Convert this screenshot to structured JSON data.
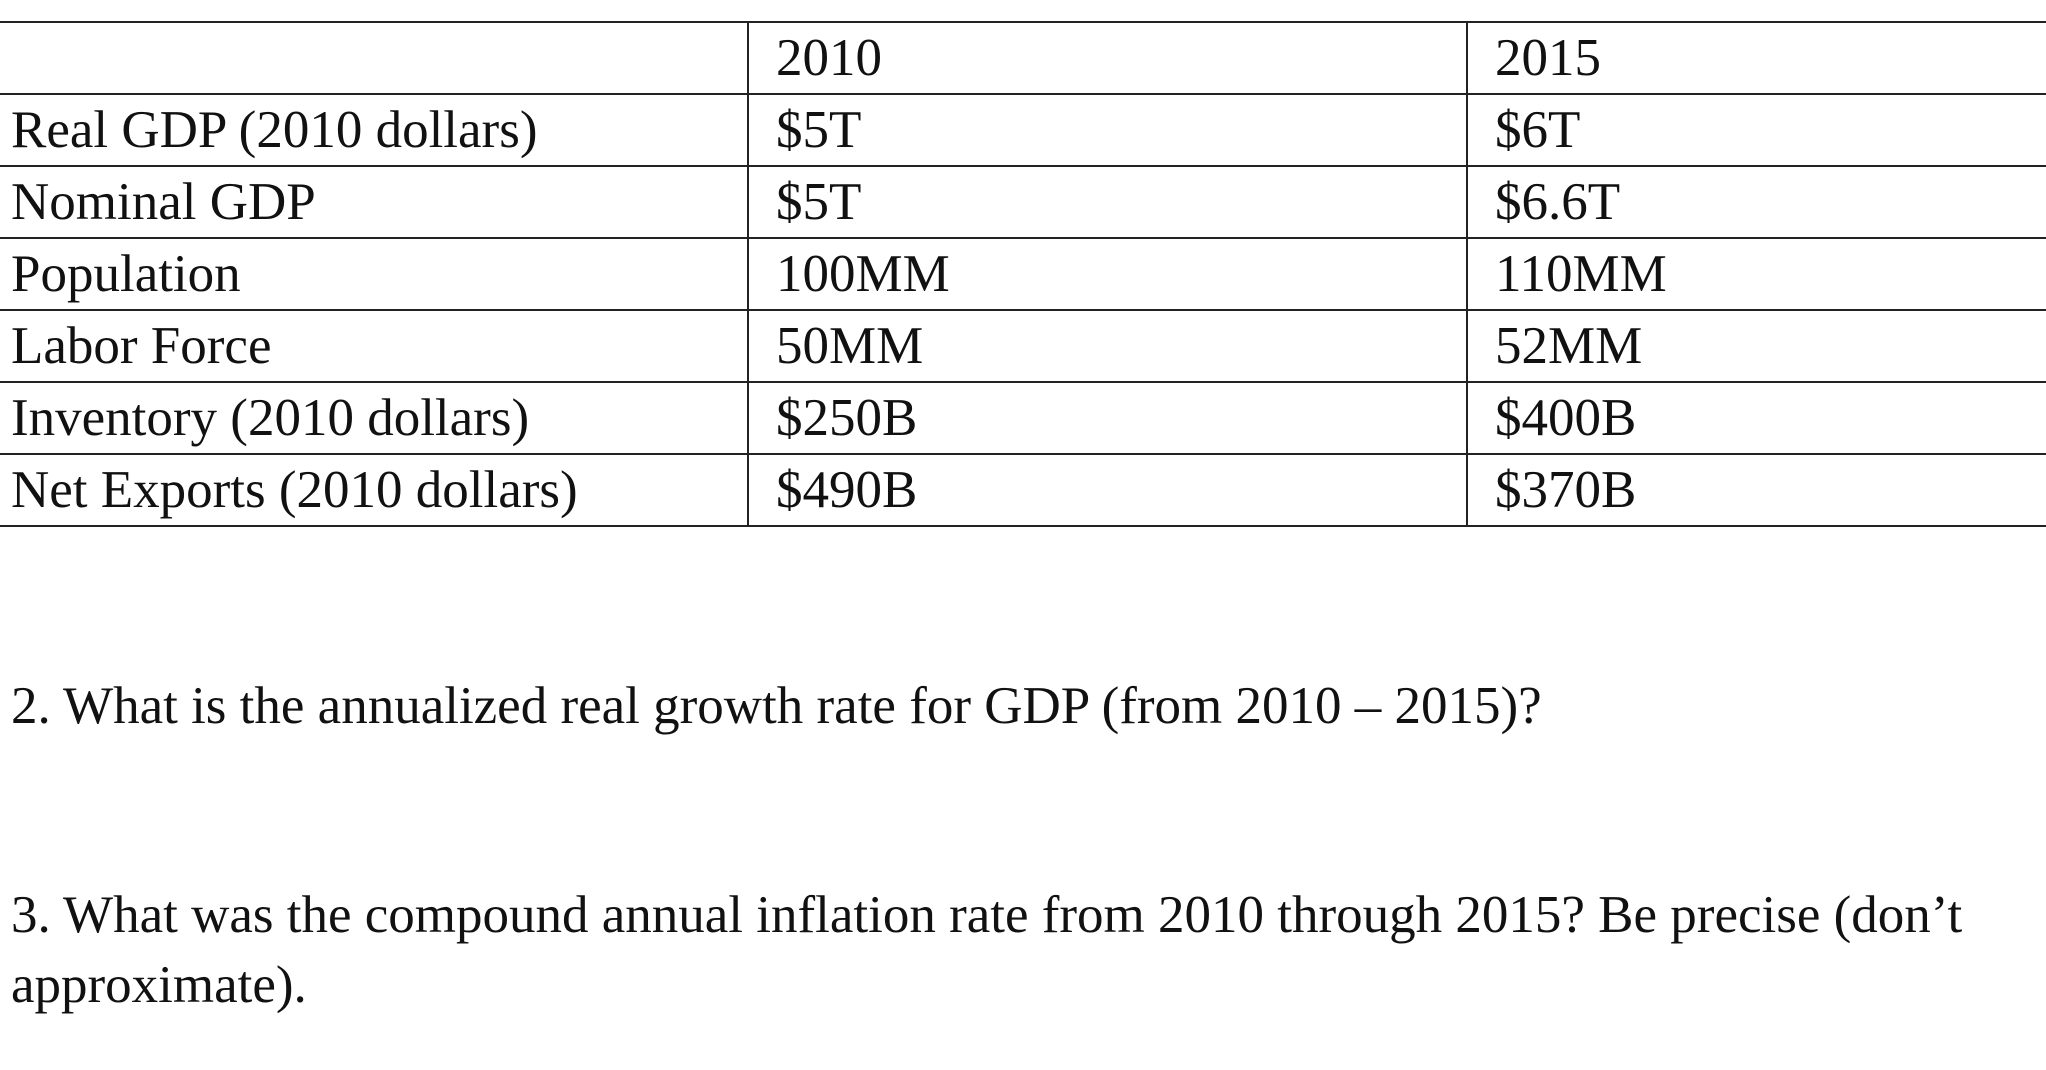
{
  "table": {
    "headers": [
      "",
      "2010",
      "2015"
    ],
    "rows": [
      [
        "Real GDP (2010 dollars)",
        "$5T",
        "$6T"
      ],
      [
        "Nominal GDP",
        "$5T",
        "$6.6T"
      ],
      [
        "Population",
        "100MM",
        "110MM"
      ],
      [
        "Labor Force",
        "50MM",
        "52MM"
      ],
      [
        "Inventory (2010 dollars)",
        "$250B",
        "$400B"
      ],
      [
        "Net Exports (2010 dollars)",
        "$490B",
        "$370B"
      ]
    ]
  },
  "questions": [
    "2. What is the annualized real growth rate for GDP (from 2010 – 2015)?",
    "3. What was the compound annual inflation rate from 2010 through 2015?  Be precise (don’t approximate)."
  ]
}
